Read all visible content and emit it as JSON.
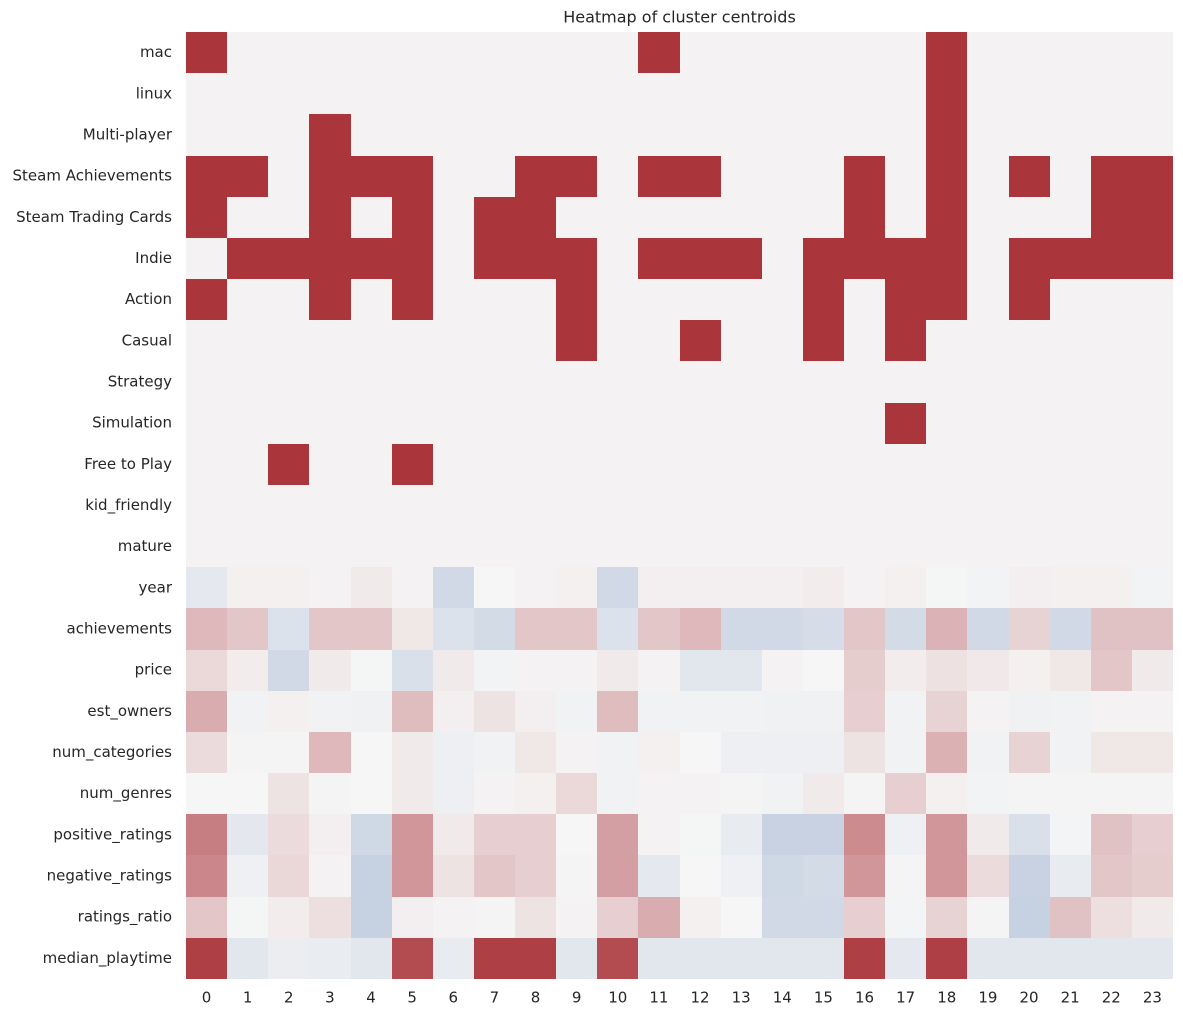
{
  "chart_data": {
    "type": "heatmap",
    "title": "Heatmap of cluster centroids",
    "xlabel": "",
    "ylabel": "",
    "x": [
      "0",
      "1",
      "2",
      "3",
      "4",
      "5",
      "6",
      "7",
      "8",
      "9",
      "10",
      "11",
      "12",
      "13",
      "14",
      "15",
      "16",
      "17",
      "18",
      "19",
      "20",
      "21",
      "22",
      "23"
    ],
    "y": [
      "mac",
      "linux",
      "Multi-player",
      "Steam Achievements",
      "Steam Trading Cards",
      "Indie",
      "Action",
      "Casual",
      "Strategy",
      "Simulation",
      "Free to Play",
      "kid_friendly",
      "mature",
      "year",
      "achievements",
      "price",
      "est_owners",
      "num_categories",
      "num_genres",
      "positive_ratings",
      "negative_ratings",
      "ratings_ratio",
      "median_playtime"
    ],
    "colormap": "diverging blue-white-red",
    "colors": {
      "low": "#9aaecd",
      "mid": "#f6f6f6",
      "high": "#aa353b"
    },
    "value_range": [
      -1,
      1
    ],
    "colorbar": false,
    "values": [
      [
        1,
        0.02,
        0.02,
        0.02,
        0.02,
        0.02,
        0.02,
        0.02,
        0.02,
        0.02,
        0.02,
        1,
        0.02,
        0.02,
        0.02,
        0.02,
        0.02,
        0.02,
        1,
        0.02,
        0.02,
        0.02,
        0.02,
        0.02
      ],
      [
        0.02,
        0.02,
        0.02,
        0.02,
        0.02,
        0.02,
        0.02,
        0.02,
        0.02,
        0.02,
        0.02,
        0.02,
        0.02,
        0.02,
        0.02,
        0.02,
        0.02,
        0.02,
        1,
        0.02,
        0.02,
        0.02,
        0.02,
        0.02
      ],
      [
        0.02,
        0.02,
        0.02,
        1,
        0.02,
        0.02,
        0.02,
        0.02,
        0.02,
        0.02,
        0.02,
        0.02,
        0.02,
        0.02,
        0.02,
        0.02,
        0.02,
        0.02,
        1,
        0.02,
        0.02,
        0.02,
        0.02,
        0.02
      ],
      [
        1,
        1,
        0.02,
        1,
        1,
        1,
        0.02,
        0.02,
        1,
        1,
        0.02,
        1,
        1,
        0.02,
        0.02,
        0.02,
        1,
        0.02,
        1,
        0.02,
        1,
        0.02,
        1,
        1
      ],
      [
        1,
        0.02,
        0.02,
        1,
        0.02,
        1,
        0.02,
        1,
        1,
        0.02,
        0.02,
        0.02,
        0.02,
        0.02,
        0.02,
        0.02,
        1,
        0.02,
        1,
        0.02,
        0.02,
        0.02,
        1,
        1
      ],
      [
        0.02,
        1,
        1,
        1,
        1,
        1,
        0.02,
        1,
        1,
        1,
        0.02,
        1,
        1,
        1,
        0.02,
        1,
        1,
        1,
        1,
        0.02,
        1,
        1,
        1,
        1
      ],
      [
        1,
        0.02,
        0.02,
        1,
        0.02,
        1,
        0.02,
        0.02,
        0.02,
        1,
        0.02,
        0.02,
        0.02,
        0.02,
        0.02,
        1,
        0.02,
        1,
        1,
        0.02,
        1,
        0.02,
        0.02,
        0.02
      ],
      [
        0.02,
        0.02,
        0.02,
        0.02,
        0.02,
        0.02,
        0.02,
        0.02,
        0.02,
        1,
        0.02,
        0.02,
        1,
        0.02,
        0.02,
        1,
        0.02,
        1,
        0.02,
        0.02,
        0.02,
        0.02,
        0.02,
        0.02
      ],
      [
        0.02,
        0.02,
        0.02,
        0.02,
        0.02,
        0.02,
        0.02,
        0.02,
        0.02,
        0.02,
        0.02,
        0.02,
        0.02,
        0.02,
        0.02,
        0.02,
        0.02,
        0.02,
        0.02,
        0.02,
        0.02,
        0.02,
        0.02,
        0.02
      ],
      [
        0.02,
        0.02,
        0.02,
        0.02,
        0.02,
        0.02,
        0.02,
        0.02,
        0.02,
        0.02,
        0.02,
        0.02,
        0.02,
        0.02,
        0.02,
        0.02,
        0.02,
        1,
        0.02,
        0.02,
        0.02,
        0.02,
        0.02,
        0.02
      ],
      [
        0.02,
        0.02,
        1,
        0.02,
        0.02,
        1,
        0.02,
        0.02,
        0.02,
        0.02,
        0.02,
        0.02,
        0.02,
        0.02,
        0.02,
        0.02,
        0.02,
        0.02,
        0.02,
        0.02,
        0.02,
        0.02,
        0.02,
        0.02
      ],
      [
        0.02,
        0.02,
        0.02,
        0.02,
        0.02,
        0.02,
        0.02,
        0.02,
        0.02,
        0.02,
        0.02,
        0.02,
        0.02,
        0.02,
        0.02,
        0.02,
        0.02,
        0.02,
        0.02,
        0.02,
        0.02,
        0.02,
        0.02,
        0.02
      ],
      [
        0.02,
        0.02,
        0.02,
        0.02,
        0.02,
        0.02,
        0.02,
        0.02,
        0.02,
        0.02,
        0.02,
        0.02,
        0.02,
        0.02,
        0.02,
        0.02,
        0.02,
        0.02,
        0.02,
        0.02,
        0.02,
        0.02,
        0.02,
        0.02
      ],
      [
        -0.18,
        0.03,
        0.03,
        0.02,
        0.06,
        0.02,
        -0.4,
        0,
        0.02,
        0.03,
        -0.4,
        0.04,
        0.04,
        0.04,
        0.04,
        0.05,
        0.02,
        0.03,
        -0.02,
        -0.04,
        0.04,
        0.03,
        0.03,
        -0.04
      ],
      [
        0.32,
        0.25,
        -0.28,
        0.25,
        0.25,
        0.08,
        -0.28,
        -0.38,
        0.25,
        0.25,
        -0.28,
        0.25,
        0.32,
        -0.4,
        -0.4,
        -0.35,
        0.25,
        -0.38,
        0.35,
        -0.4,
        0.18,
        -0.4,
        0.27,
        0.27
      ],
      [
        0.15,
        0.05,
        -0.4,
        0.06,
        -0.02,
        -0.3,
        0.06,
        -0.04,
        0.02,
        0.02,
        0.06,
        0.02,
        -0.22,
        -0.22,
        0.02,
        0,
        0.22,
        0.05,
        0.11,
        0.07,
        0.03,
        0.08,
        0.25,
        0.06
      ],
      [
        0.38,
        -0.05,
        0.03,
        -0.05,
        -0.07,
        0.3,
        0.04,
        0.1,
        0.04,
        -0.06,
        0.3,
        -0.06,
        -0.06,
        -0.06,
        -0.07,
        -0.07,
        0.2,
        -0.05,
        0.18,
        0.02,
        -0.07,
        -0.05,
        0.02,
        0.02
      ],
      [
        0.14,
        0.01,
        0.01,
        0.32,
        0,
        0.06,
        -0.1,
        -0.05,
        0.08,
        0.02,
        -0.05,
        0.03,
        0,
        -0.1,
        -0.1,
        -0.1,
        0.1,
        -0.05,
        0.36,
        -0.05,
        0.18,
        -0.06,
        0.08,
        0.08
      ],
      [
        0,
        0,
        0.1,
        0.01,
        0,
        0.06,
        -0.1,
        0.02,
        0.03,
        0.15,
        -0.06,
        0.02,
        0.02,
        0.01,
        -0.05,
        0.06,
        0.01,
        0.2,
        0.03,
        -0.04,
        0.01,
        0.01,
        0.01,
        0.01
      ],
      [
        0.62,
        -0.2,
        0.14,
        0.04,
        -0.42,
        0.5,
        0.06,
        0.2,
        0.2,
        0,
        0.45,
        0.02,
        -0.02,
        -0.15,
        -0.5,
        -0.5,
        0.55,
        -0.08,
        0.5,
        0.06,
        -0.3,
        -0.03,
        0.27,
        0.2
      ],
      [
        0.58,
        -0.08,
        0.16,
        0.02,
        -0.52,
        0.5,
        0.1,
        0.25,
        0.2,
        0.01,
        0.45,
        -0.18,
        0,
        -0.08,
        -0.42,
        -0.38,
        0.5,
        0.01,
        0.5,
        0.14,
        -0.5,
        -0.15,
        0.25,
        0.22
      ],
      [
        0.25,
        -0.02,
        0.05,
        0.12,
        -0.52,
        0.04,
        0.02,
        0.01,
        0.1,
        0.02,
        0.2,
        0.38,
        0.03,
        0,
        -0.4,
        -0.4,
        0.2,
        -0.03,
        0.18,
        0.01,
        -0.52,
        0.27,
        0.12,
        0.06
      ],
      [
        0.95,
        -0.22,
        -0.12,
        -0.14,
        -0.22,
        0.88,
        -0.15,
        0.95,
        0.95,
        -0.22,
        0.88,
        -0.22,
        -0.22,
        -0.22,
        -0.22,
        -0.22,
        0.95,
        -0.18,
        0.95,
        -0.22,
        -0.22,
        -0.22,
        -0.22,
        -0.22
      ]
    ]
  }
}
